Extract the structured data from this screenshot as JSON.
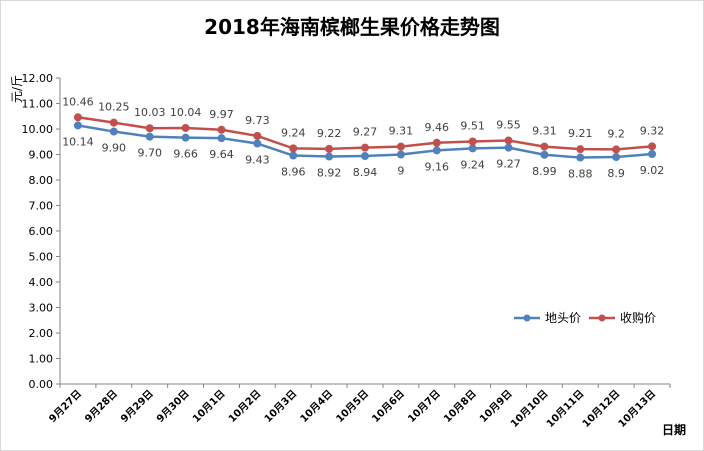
{
  "chart_data": {
    "type": "line",
    "title": "2018年海南槟榔生果价格走势图",
    "ylabel": "元/斤",
    "xlabel": "日期",
    "ylim": [
      0,
      12
    ],
    "ytick_labels": [
      "0.00",
      "1.00",
      "2.00",
      "3.00",
      "4.00",
      "5.00",
      "6.00",
      "7.00",
      "8.00",
      "9.00",
      "10.00",
      "11.00",
      "12.00"
    ],
    "categories": [
      "9月27日",
      "9月28日",
      "9月29日",
      "9月30日",
      "10月1日",
      "10月2日",
      "10月3日",
      "10月4日",
      "10月5日",
      "10月6日",
      "10月7日",
      "10月8日",
      "10月9日",
      "10月10日",
      "10月11日",
      "10月12日",
      "10月13日"
    ],
    "series": [
      {
        "name": "地头价",
        "color": "#4f81bd",
        "values": [
          10.14,
          9.9,
          9.7,
          9.66,
          9.64,
          9.43,
          8.96,
          8.92,
          8.94,
          9,
          9.16,
          9.24,
          9.27,
          8.99,
          8.88,
          8.9,
          9.02
        ],
        "labels": [
          "10.14",
          "9.90",
          "9.70",
          "9.66",
          "9.64",
          "9.43",
          "8.96",
          "8.92",
          "8.94",
          "9",
          "9.16",
          "9.24",
          "9.27",
          "8.99",
          "8.88",
          "8.9",
          "9.02"
        ]
      },
      {
        "name": "收购价",
        "color": "#c0504d",
        "values": [
          10.46,
          10.25,
          10.03,
          10.04,
          9.97,
          9.73,
          9.24,
          9.22,
          9.27,
          9.31,
          9.46,
          9.51,
          9.55,
          9.31,
          9.21,
          9.2,
          9.32
        ],
        "labels": [
          "10.46",
          "10.25",
          "10.03",
          "10.04",
          "9.97",
          "9.73",
          "9.24",
          "9.22",
          "9.27",
          "9.31",
          "9.46",
          "9.51",
          "9.55",
          "9.31",
          "9.21",
          "9.2",
          "9.32"
        ]
      }
    ],
    "legend_position": "right",
    "grid": false
  }
}
